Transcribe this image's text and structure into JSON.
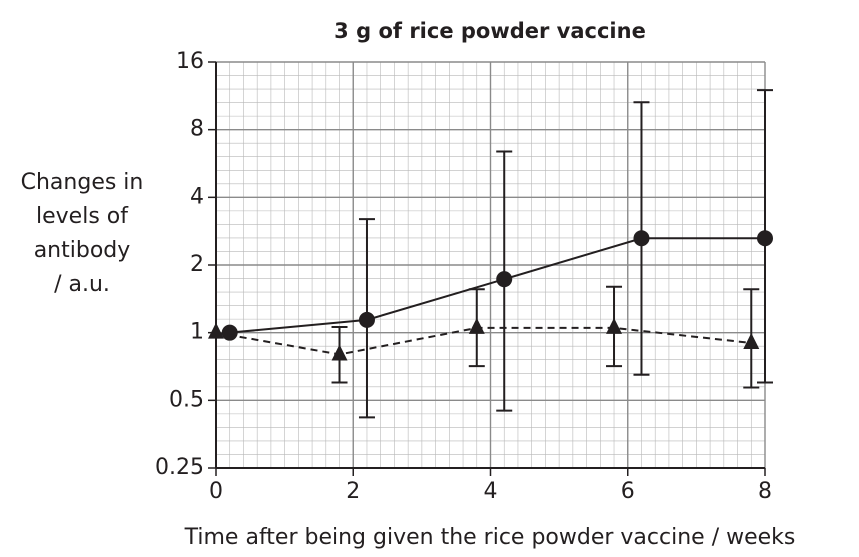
{
  "chart_data": {
    "type": "line",
    "title": "3 g of rice powder vaccine",
    "x_label": "Time after being given the rice powder vaccine / weeks",
    "y_label": [
      "Changes in",
      "levels of",
      "antibody",
      "/ a.u."
    ],
    "xlim": [
      0,
      8
    ],
    "xticks": [
      0,
      2,
      4,
      6,
      8
    ],
    "ylim": [
      0.25,
      16
    ],
    "yticks": [
      0.25,
      0.5,
      1,
      2,
      4,
      8,
      16
    ],
    "y_log_base": 2,
    "grid": true,
    "minor_grid": true,
    "series": [
      {
        "color": "#231f20",
        "marker": "circle",
        "line_style": "solid",
        "x": [
          0.2,
          2.2,
          4.2,
          6.2,
          8
        ],
        "values": [
          1,
          1.14,
          1.73,
          2.63,
          2.63
        ],
        "lower": [
          null,
          0.42,
          0.45,
          0.65,
          0.6
        ],
        "upper": [
          null,
          3.2,
          6.4,
          10.6,
          12
        ]
      },
      {
        "color": "#231f20",
        "marker": "triangle",
        "line_style": "dashed",
        "x": [
          0,
          1.8,
          3.8,
          5.8,
          7.8
        ],
        "values": [
          1,
          0.8,
          1.05,
          1.05,
          0.9
        ],
        "lower": [
          null,
          0.6,
          0.71,
          0.71,
          0.57
        ],
        "upper": [
          null,
          1.06,
          1.56,
          1.6,
          1.56
        ]
      }
    ]
  }
}
